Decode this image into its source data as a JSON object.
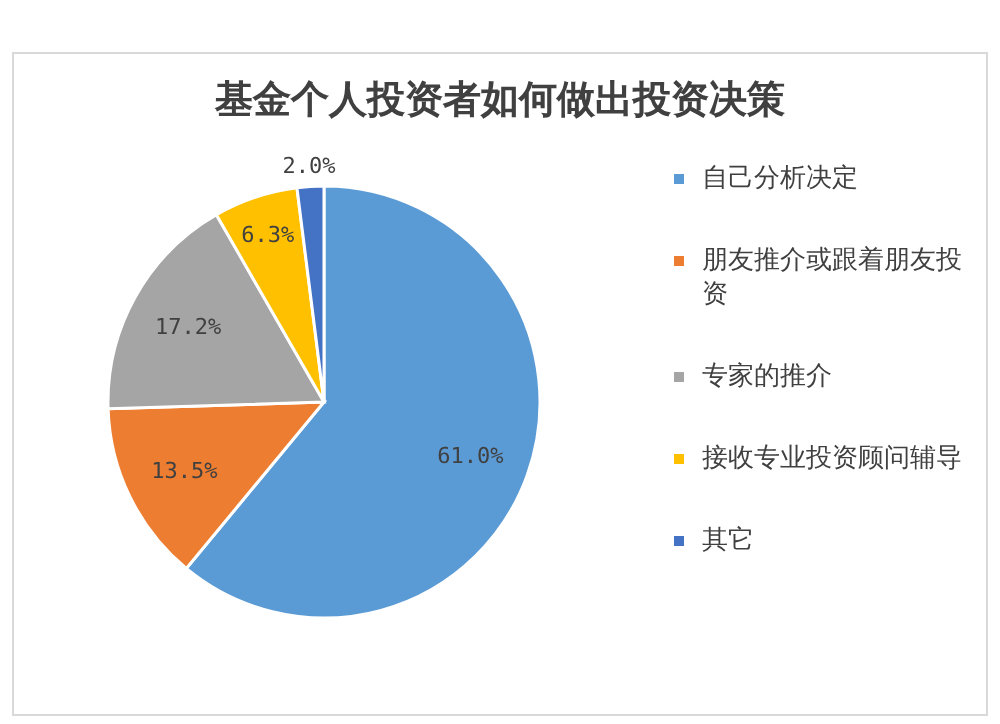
{
  "chart_data": {
    "type": "pie",
    "title": "基金个人投资者如何做出投资决策",
    "categories": [
      "自己分析决定",
      "朋友推介或跟着朋友投资",
      "专家的推介",
      "接收专业投资顾问辅导",
      "其它"
    ],
    "values": [
      61.0,
      13.5,
      17.2,
      6.3,
      2.0
    ],
    "colors": [
      "#5b9bd5",
      "#ed7d31",
      "#a5a5a5",
      "#ffc000",
      "#4472c4"
    ],
    "value_labels": [
      "61.0%",
      "13.5%",
      "17.2%",
      "6.3%",
      "2.0%"
    ],
    "legend": "right"
  }
}
